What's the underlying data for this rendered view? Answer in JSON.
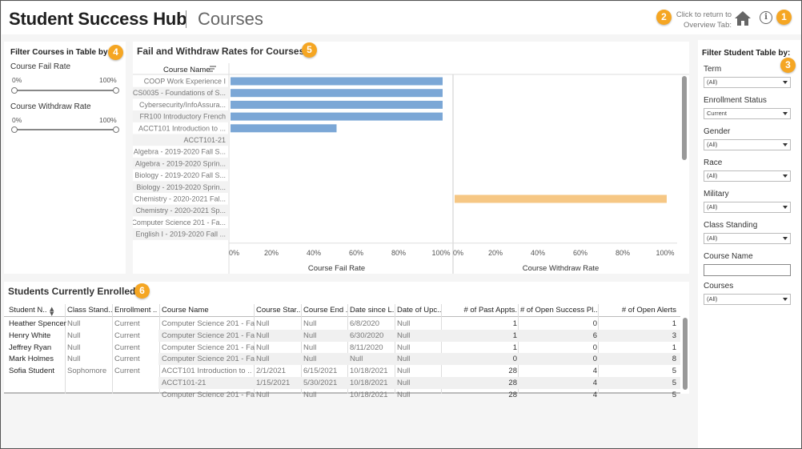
{
  "header": {
    "app_title": "Student Success Hub",
    "page_title": "Courses",
    "return_text_line1": "Click to return to",
    "return_text_line2": "Overview Tab:",
    "badge_return": "2",
    "badge_info": "1"
  },
  "icons": {
    "home": "home-icon",
    "info": "info-icon",
    "sort": "sort-icon"
  },
  "colors": {
    "fail_bar": "#7ba7d6",
    "withdraw_bar": "#f6c784",
    "badge": "#f5a623"
  },
  "left_filters": {
    "heading": "Filter Courses in Table by:",
    "badge": "4",
    "fail_rate": {
      "label": "Course Fail Rate",
      "min_label": "0%",
      "max_label": "100%",
      "min_value": 0,
      "max_value": 100
    },
    "withdraw_rate": {
      "label": "Course Withdraw Rate",
      "min_label": "0%",
      "max_label": "100%",
      "min_value": 0,
      "max_value": 100
    }
  },
  "chart": {
    "title": "Fail and Withdraw Rates for Courses",
    "badge": "5",
    "row_header": "Course Name",
    "fail_axis_title": "Course Fail Rate",
    "withdraw_axis_title": "Course Withdraw Rate",
    "ticks": [
      "0%",
      "20%",
      "40%",
      "60%",
      "80%",
      "100%"
    ]
  },
  "chart_data": {
    "type": "bar",
    "orientation": "horizontal",
    "categories": [
      "COOP Work Experience I",
      "CS0035 - Foundations of S...",
      "Cybersecurity/InfoAssura...",
      "FR100 Introductory French",
      "ACCT101 Introduction to ...",
      "ACCT101-21",
      "Algebra - 2019-2020 Fall S...",
      "Algebra - 2019-2020 Sprin...",
      "Biology - 2019-2020 Fall S...",
      "Biology - 2019-2020 Sprin...",
      "Chemistry - 2020-2021 Fal...",
      "Chemistry - 2020-2021 Sp...",
      "Computer Science 201 - Fa...",
      "English I - 2019-2020 Fall ..."
    ],
    "series": [
      {
        "name": "Course Fail Rate",
        "values": [
          100,
          100,
          100,
          100,
          50,
          0,
          0,
          0,
          0,
          0,
          0,
          0,
          0,
          0
        ]
      },
      {
        "name": "Course Withdraw Rate",
        "values": [
          0,
          0,
          0,
          0,
          0,
          0,
          0,
          0,
          0,
          0,
          100,
          0,
          0,
          0
        ]
      }
    ],
    "xlim": [
      0,
      100
    ],
    "x_unit": "%",
    "grid": false
  },
  "right_filters": {
    "heading": "Filter Student Table by:",
    "badge": "3",
    "items": [
      {
        "label": "Term",
        "value": "(All)"
      },
      {
        "label": "Enrollment Status",
        "value": "Current"
      },
      {
        "label": "Gender",
        "value": "(All)"
      },
      {
        "label": "Race",
        "value": "(All)"
      },
      {
        "label": "Military",
        "value": "(All)"
      },
      {
        "label": "Class Standing",
        "value": "(All)"
      }
    ],
    "course_name": {
      "label": "Course Name",
      "value": ""
    },
    "courses": {
      "label": "Courses",
      "value": "(All)"
    }
  },
  "table": {
    "title": "Students Currently Enrolled",
    "badge": "6",
    "columns": [
      "Student N..",
      "Class Stand..",
      "Enrollment ..",
      "Course Name",
      "Course Star..",
      "Course End ..",
      "Date since L..",
      "Date of Upc..",
      "# of Past Appts.",
      "# of Open Success Pl..",
      "# of Open Alerts"
    ],
    "rows": [
      {
        "student": "Heather Spencer",
        "standing": "Null",
        "enrollment": "Current",
        "course": "Computer Science 201 - Fa..",
        "start": "Null",
        "end": "Null",
        "since": "6/8/2020",
        "upcoming": "Null",
        "past": "1",
        "plans": "0",
        "alerts": "1"
      },
      {
        "student": "Henry White",
        "standing": "Null",
        "enrollment": "Current",
        "course": "Computer Science 201 - Fa..",
        "start": "Null",
        "end": "Null",
        "since": "6/30/2020",
        "upcoming": "Null",
        "past": "1",
        "plans": "6",
        "alerts": "3"
      },
      {
        "student": "Jeffrey Ryan",
        "standing": "Null",
        "enrollment": "Current",
        "course": "Computer Science 201 - Fa..",
        "start": "Null",
        "end": "Null",
        "since": "8/11/2020",
        "upcoming": "Null",
        "past": "1",
        "plans": "0",
        "alerts": "1"
      },
      {
        "student": "Mark Holmes",
        "standing": "Null",
        "enrollment": "Current",
        "course": "Computer Science 201 - Fa..",
        "start": "Null",
        "end": "Null",
        "since": "Null",
        "upcoming": "Null",
        "past": "0",
        "plans": "0",
        "alerts": "8"
      },
      {
        "student": "Sofia Student",
        "standing": "Sophomore",
        "enrollment": "Current",
        "course": "ACCT101 Introduction to ..",
        "start": "2/1/2021",
        "end": "6/15/2021",
        "since": "10/18/2021",
        "upcoming": "Null",
        "past": "28",
        "plans": "4",
        "alerts": "5"
      },
      {
        "student": "",
        "standing": "",
        "enrollment": "",
        "course": "ACCT101-21",
        "start": "1/15/2021",
        "end": "5/30/2021",
        "since": "10/18/2021",
        "upcoming": "Null",
        "past": "28",
        "plans": "4",
        "alerts": "5"
      },
      {
        "student": "",
        "standing": "",
        "enrollment": "",
        "course": "Computer Science 201 - Fa..",
        "start": "Null",
        "end": "Null",
        "since": "10/18/2021",
        "upcoming": "Null",
        "past": "28",
        "plans": "4",
        "alerts": "5"
      }
    ]
  }
}
